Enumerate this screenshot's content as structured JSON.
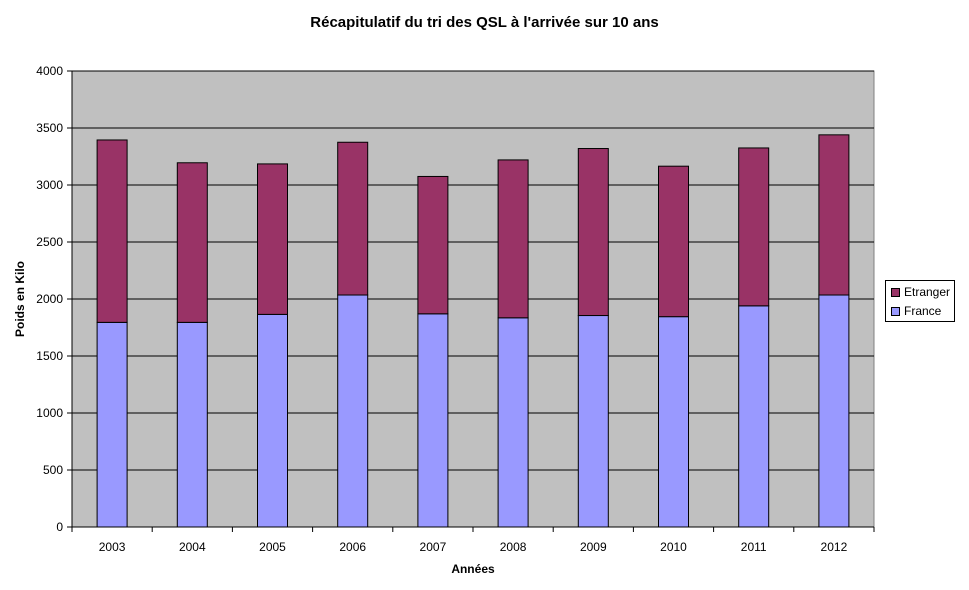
{
  "chart_data": {
    "type": "bar",
    "stacked": true,
    "title": "Récapitulatif du tri des QSL à l'arrivée  sur 10 ans",
    "xlabel": "Années",
    "ylabel": "Poids en Kilo",
    "categories": [
      "2003",
      "2004",
      "2005",
      "2006",
      "2007",
      "2008",
      "2009",
      "2010",
      "2011",
      "2012"
    ],
    "series": [
      {
        "name": "France",
        "color": "#9999ff",
        "values": [
          1795,
          1795,
          1865,
          2035,
          1870,
          1835,
          1855,
          1845,
          1940,
          2035
        ]
      },
      {
        "name": "Etranger",
        "color": "#993366",
        "values": [
          1600,
          1400,
          1320,
          1340,
          1205,
          1385,
          1465,
          1320,
          1385,
          1405
        ]
      }
    ],
    "ylim": [
      0,
      4000
    ],
    "yticks": [
      0,
      500,
      1000,
      1500,
      2000,
      2500,
      3000,
      3500,
      4000
    ],
    "grid": true,
    "plot_background": "#c0c0c0",
    "legend": {
      "placement": "right",
      "order": [
        "Etranger",
        "France"
      ]
    }
  }
}
